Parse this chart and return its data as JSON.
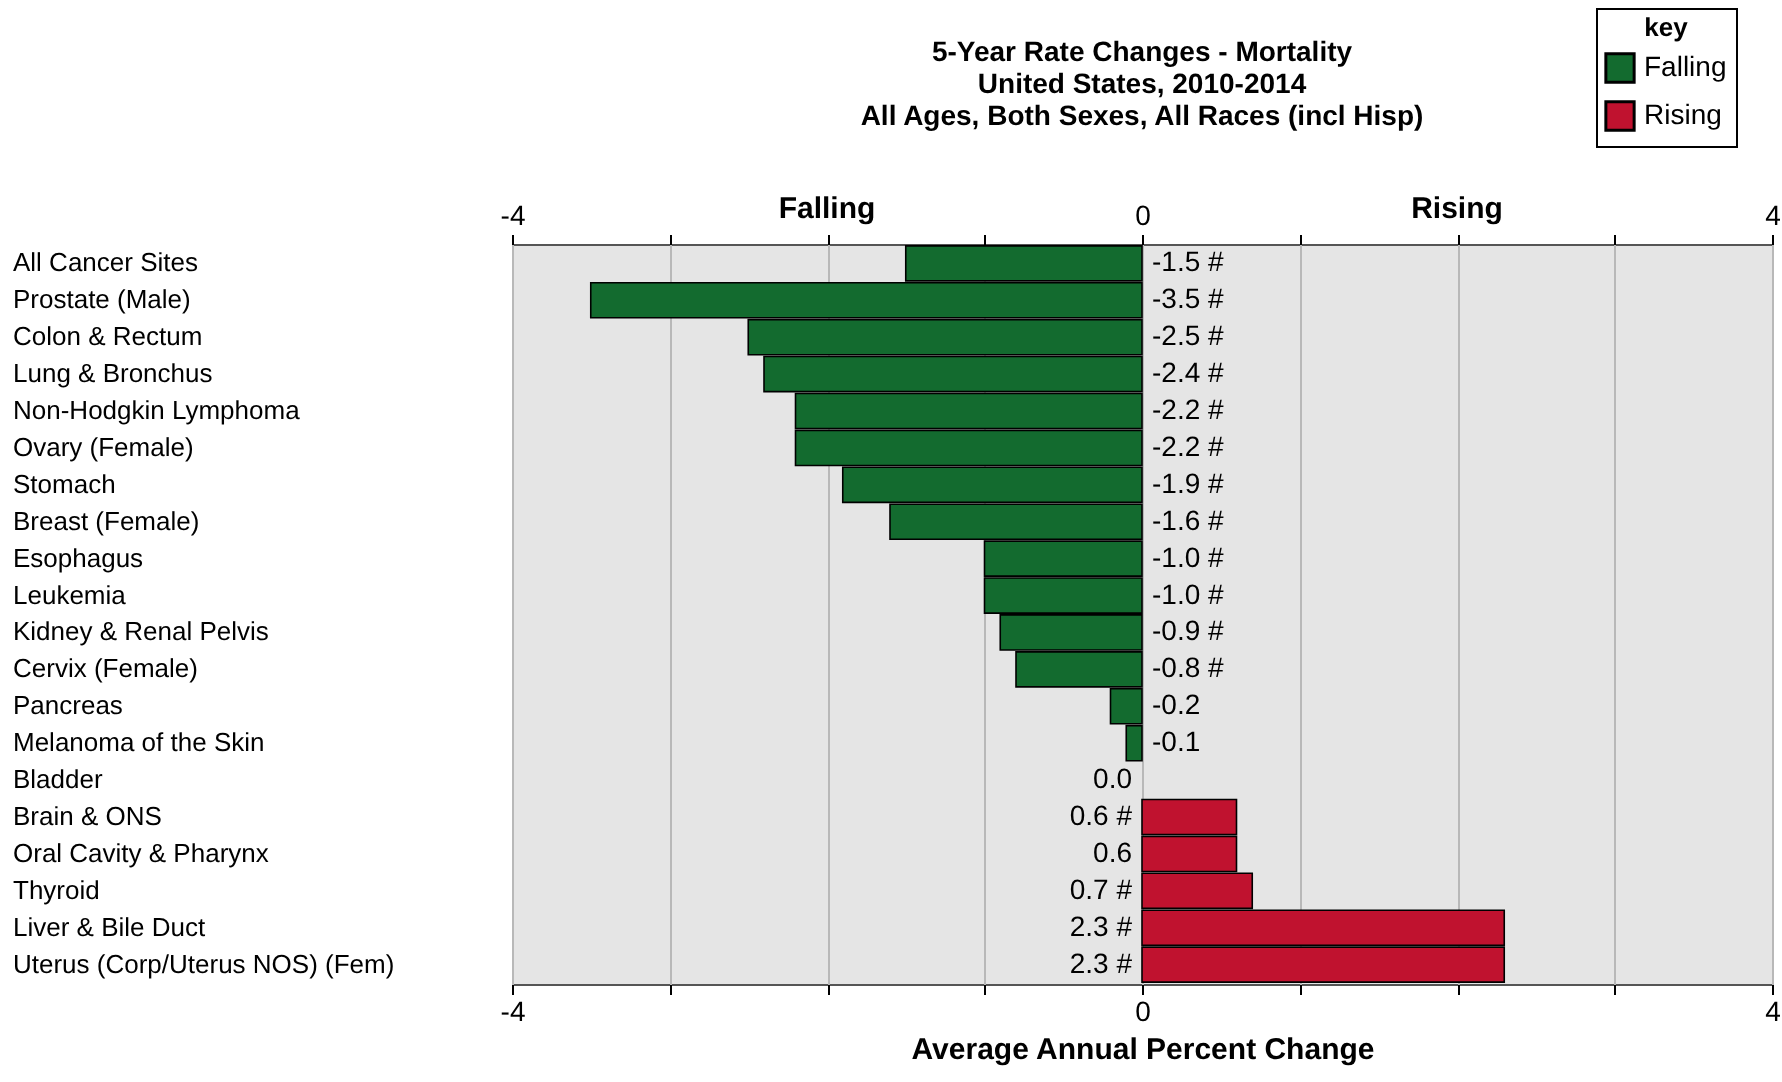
{
  "chart_data": {
    "type": "bar",
    "orientation": "horizontal",
    "title": "5-Year Rate Changes - Mortality\nUnited States, 2010-2014\nAll Ages, Both Sexes, All Races (incl Hisp)",
    "xlabel": "Average Annual Percent Change",
    "legend_title": "key",
    "legend": "top right",
    "grid": "x",
    "categories": [
      "All Cancer Sites",
      "Prostate (Male)",
      "Colon & Rectum",
      "Lung & Bronchus",
      "Non-Hodgkin Lymphoma",
      "Ovary (Female)",
      "Stomach",
      "Breast (Female)",
      "Esophagus",
      "Leukemia",
      "Kidney & Renal Pelvis",
      "Cervix (Female)",
      "Pancreas",
      "Melanoma of the Skin",
      "Bladder",
      "Brain & ONS",
      "Oral Cavity & Pharynx",
      "Thyroid",
      "Liver & Bile Duct",
      "Uterus (Corp/Uterus NOS) (Fem)"
    ],
    "series": [
      {
        "name": "Falling",
        "color": "#136b2f",
        "values": [
          -1.5,
          -3.5,
          -2.5,
          -2.4,
          -2.2,
          -2.2,
          -1.9,
          -1.6,
          -1.0,
          -1.0,
          -0.9,
          -0.8,
          -0.2,
          -0.1,
          null,
          null,
          null,
          null,
          null,
          null
        ],
        "value_labels": [
          "-1.5 #",
          "-3.5 #",
          "-2.5 #",
          "-2.4 #",
          "-2.2 #",
          "-2.2 #",
          "-1.9 #",
          "-1.6 #",
          "-1.0 #",
          "-1.0 #",
          "-0.9 #",
          "-0.8 #",
          "-0.2",
          "-0.1",
          null,
          null,
          null,
          null,
          null,
          null
        ]
      },
      {
        "name": "Rising",
        "color": "#c0122f",
        "values": [
          null,
          null,
          null,
          null,
          null,
          null,
          null,
          null,
          null,
          null,
          null,
          null,
          null,
          null,
          0.0,
          0.6,
          0.6,
          0.7,
          2.3,
          2.3
        ],
        "value_labels": [
          null,
          null,
          null,
          null,
          null,
          null,
          null,
          null,
          null,
          null,
          null,
          null,
          null,
          null,
          "0.0",
          "0.6  #",
          "0.6",
          "0.7  #",
          "2.3  #",
          "2.3  #"
        ]
      }
    ],
    "xlim": [
      -4,
      4
    ],
    "xticks": [
      -4,
      {
        "value": -3,
        "label": null
      },
      {
        "value": -2,
        "label": null
      },
      {
        "value": -1,
        "label": null
      },
      0,
      {
        "value": 1,
        "label": null
      },
      {
        "value": 2,
        "label": null
      },
      {
        "value": 3,
        "label": null
      },
      4
    ],
    "x2lim": [
      -4,
      4
    ],
    "x2ticks": [
      -4,
      {
        "value": -3,
        "label": null
      },
      {
        "value": -2,
        "label": null
      },
      {
        "value": -1,
        "label": null
      },
      0,
      {
        "value": 1,
        "label": null
      },
      {
        "value": 2,
        "label": null
      },
      {
        "value": 3,
        "label": null
      },
      4
    ],
    "annotations": [
      "Falling",
      "Rising"
    ]
  }
}
